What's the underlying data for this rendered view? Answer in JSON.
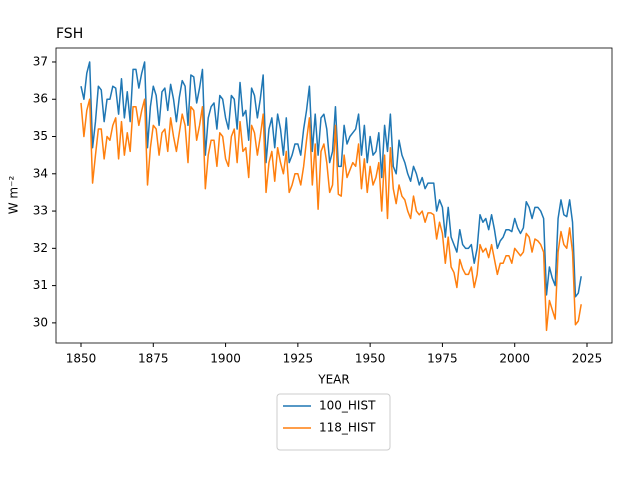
{
  "chart_data": {
    "type": "line",
    "title": "FSH",
    "xlabel": "YEAR",
    "ylabel": "W m⁻²",
    "x": [
      1850,
      1851,
      1852,
      1853,
      1854,
      1855,
      1856,
      1857,
      1858,
      1859,
      1860,
      1861,
      1862,
      1863,
      1864,
      1865,
      1866,
      1867,
      1868,
      1869,
      1870,
      1871,
      1872,
      1873,
      1874,
      1875,
      1876,
      1877,
      1878,
      1879,
      1880,
      1881,
      1882,
      1883,
      1884,
      1885,
      1886,
      1887,
      1888,
      1889,
      1890,
      1891,
      1892,
      1893,
      1894,
      1895,
      1896,
      1897,
      1898,
      1899,
      1900,
      1901,
      1902,
      1903,
      1904,
      1905,
      1906,
      1907,
      1908,
      1909,
      1910,
      1911,
      1912,
      1913,
      1914,
      1915,
      1916,
      1917,
      1918,
      1919,
      1920,
      1921,
      1922,
      1923,
      1924,
      1925,
      1926,
      1927,
      1928,
      1929,
      1930,
      1931,
      1932,
      1933,
      1934,
      1935,
      1936,
      1937,
      1938,
      1939,
      1940,
      1941,
      1942,
      1943,
      1944,
      1945,
      1946,
      1947,
      1948,
      1949,
      1950,
      1951,
      1952,
      1953,
      1954,
      1955,
      1956,
      1957,
      1958,
      1959,
      1960,
      1961,
      1962,
      1963,
      1964,
      1965,
      1966,
      1967,
      1968,
      1969,
      1970,
      1971,
      1972,
      1973,
      1974,
      1975,
      1976,
      1977,
      1978,
      1979,
      1980,
      1981,
      1982,
      1983,
      1984,
      1985,
      1986,
      1987,
      1988,
      1989,
      1990,
      1991,
      1992,
      1993,
      1994,
      1995,
      1996,
      1997,
      1998,
      1999,
      2000,
      2001,
      2002,
      2003,
      2004,
      2005,
      2006,
      2007,
      2008,
      2009,
      2010,
      2011,
      2012,
      2013,
      2014,
      2015,
      2016,
      2017,
      2018,
      2019,
      2020,
      2021,
      2022,
      2023
    ],
    "series": [
      {
        "name": "100_HIST",
        "color": "#1f77b4",
        "values": [
          36.35,
          36.0,
          36.7,
          37.0,
          34.7,
          35.4,
          36.35,
          36.25,
          35.4,
          36.0,
          36.0,
          36.35,
          36.3,
          35.6,
          36.55,
          35.5,
          36.2,
          35.4,
          36.8,
          36.8,
          36.3,
          36.7,
          37.0,
          34.7,
          35.8,
          36.35,
          36.1,
          35.3,
          36.2,
          36.3,
          35.7,
          36.4,
          36.0,
          35.4,
          36.05,
          36.5,
          36.35,
          35.3,
          36.65,
          36.6,
          35.9,
          36.3,
          36.8,
          34.5,
          35.5,
          35.8,
          35.9,
          35.2,
          36.1,
          36.0,
          35.5,
          35.2,
          36.1,
          36.0,
          35.2,
          36.45,
          35.55,
          35.7,
          34.9,
          36.3,
          36.1,
          35.5,
          36.0,
          36.65,
          34.3,
          35.2,
          35.5,
          34.7,
          35.6,
          35.2,
          34.5,
          35.5,
          34.3,
          34.5,
          34.8,
          34.8,
          34.5,
          35.2,
          35.7,
          36.35,
          34.6,
          35.6,
          34.5,
          35.5,
          35.6,
          35.2,
          34.3,
          34.6,
          35.8,
          34.2,
          34.2,
          35.3,
          34.8,
          35.0,
          35.1,
          35.2,
          35.6,
          34.5,
          35.3,
          34.3,
          35.0,
          34.5,
          34.6,
          35.1,
          33.9,
          35.3,
          34.6,
          35.6,
          34.2,
          34.0,
          34.9,
          34.5,
          34.3,
          34.0,
          33.8,
          34.2,
          34.0,
          33.7,
          33.9,
          33.6,
          33.75,
          33.75,
          33.75,
          33.0,
          33.3,
          33.1,
          32.3,
          33.1,
          32.3,
          32.1,
          31.9,
          32.5,
          32.1,
          32.0,
          32.0,
          32.1,
          31.6,
          32.0,
          32.9,
          32.7,
          32.8,
          32.5,
          32.9,
          32.5,
          32.0,
          32.2,
          32.3,
          32.5,
          32.5,
          32.45,
          32.8,
          32.55,
          32.4,
          32.55,
          33.25,
          33.1,
          32.8,
          33.1,
          33.1,
          33.0,
          32.8,
          30.75,
          31.5,
          31.2,
          31.0,
          32.8,
          33.3,
          32.9,
          32.85,
          33.3,
          32.7,
          30.7,
          30.8,
          31.25
        ]
      },
      {
        "name": "118_HIST",
        "color": "#ff7f0e",
        "values": [
          35.9,
          35.0,
          35.7,
          36.0,
          33.75,
          34.5,
          35.2,
          35.2,
          34.4,
          35.0,
          34.9,
          35.3,
          35.5,
          34.4,
          35.4,
          34.5,
          35.1,
          34.6,
          35.8,
          35.8,
          35.3,
          35.7,
          36.0,
          33.7,
          34.7,
          35.3,
          35.2,
          34.5,
          35.1,
          35.2,
          34.6,
          35.5,
          35.0,
          34.6,
          35.1,
          35.6,
          35.3,
          34.3,
          35.8,
          35.7,
          34.9,
          35.3,
          35.8,
          33.6,
          34.5,
          34.9,
          34.9,
          34.2,
          35.1,
          35.0,
          34.4,
          34.2,
          35.0,
          35.2,
          34.3,
          35.4,
          34.6,
          34.7,
          33.9,
          35.3,
          35.1,
          34.5,
          35.0,
          35.6,
          33.5,
          34.3,
          34.6,
          33.8,
          34.7,
          34.3,
          34.0,
          34.6,
          33.5,
          33.7,
          34.0,
          34.0,
          33.7,
          34.2,
          34.9,
          35.5,
          33.7,
          34.8,
          33.05,
          34.6,
          34.8,
          34.3,
          33.5,
          33.7,
          35.3,
          33.45,
          33.4,
          34.5,
          33.9,
          34.1,
          34.3,
          34.2,
          34.8,
          33.6,
          34.4,
          33.5,
          34.2,
          33.7,
          33.9,
          34.3,
          33.0,
          34.5,
          32.8,
          34.7,
          33.6,
          33.2,
          33.7,
          33.4,
          33.3,
          33.0,
          32.8,
          33.4,
          33.0,
          32.9,
          33.0,
          32.7,
          32.95,
          32.95,
          32.9,
          32.25,
          32.7,
          32.4,
          31.6,
          32.3,
          31.5,
          31.35,
          30.95,
          31.7,
          31.45,
          31.3,
          31.3,
          31.5,
          30.95,
          31.3,
          32.1,
          31.9,
          32.0,
          31.75,
          32.1,
          31.7,
          31.3,
          31.6,
          31.6,
          31.8,
          31.8,
          31.6,
          32.0,
          31.9,
          31.8,
          31.9,
          32.4,
          32.3,
          31.9,
          32.25,
          32.2,
          32.1,
          31.9,
          29.8,
          30.6,
          30.35,
          30.1,
          31.9,
          32.45,
          32.1,
          32.0,
          32.55,
          31.9,
          29.95,
          30.05,
          30.5
        ]
      }
    ],
    "xlim": [
      1841.35,
      2033.65
    ],
    "xticks": [
      1850,
      1875,
      1900,
      1925,
      1950,
      1975,
      2000,
      2025
    ],
    "ylim": [
      29.46,
      37.375
    ],
    "yticks": [
      30,
      31,
      32,
      33,
      34,
      35,
      36,
      37
    ],
    "legend": "below"
  }
}
